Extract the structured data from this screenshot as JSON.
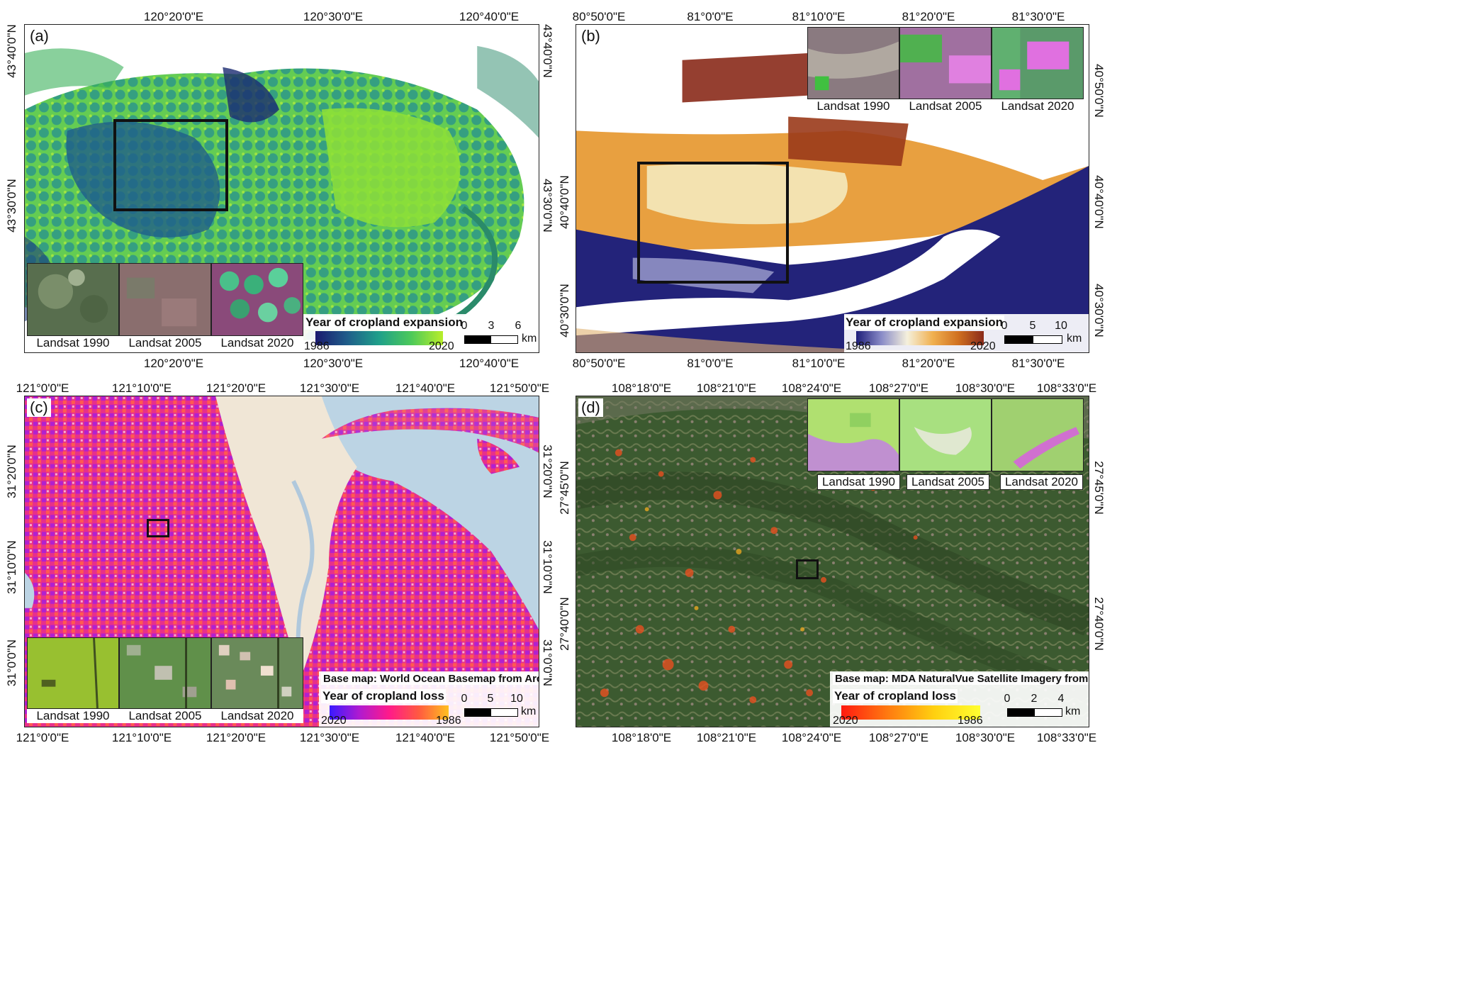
{
  "panels": {
    "a": {
      "label": "(a)",
      "top_ticks": [
        "120°20'0\"E",
        "120°30'0\"E",
        "120°40'0\"E"
      ],
      "bottom_ticks": [
        "120°20'0\"E",
        "120°30'0\"E",
        "120°40'0\"E"
      ],
      "left_ticks": [
        "43°40'0\"N",
        "43°30'0\"N"
      ],
      "right_ticks": [
        "43°40'0\"N",
        "43°30'0\"N"
      ],
      "insets": [
        "Landsat 1990",
        "Landsat 2005",
        "Landsat 2020"
      ],
      "legend_title": "Year of cropland expansion",
      "ramp_start": "1986",
      "ramp_end": "2020",
      "scale_labels": [
        "0",
        "3",
        "6"
      ],
      "scale_unit": "km",
      "ramp_colors": [
        "#1a1a6e",
        "#1f5e8a",
        "#1fa08a",
        "#4cc95a",
        "#b8ee2a"
      ]
    },
    "b": {
      "label": "(b)",
      "top_ticks": [
        "80°50'0\"E",
        "81°0'0\"E",
        "81°10'0\"E",
        "81°20'0\"E",
        "81°30'0\"E"
      ],
      "bottom_ticks": [
        "80°50'0\"E",
        "81°0'0\"E",
        "81°10'0\"E",
        "81°20'0\"E",
        "81°30'0\"E"
      ],
      "left_ticks": [
        "40°40'0\"N",
        "40°30'0\"N"
      ],
      "right_ticks": [
        "40°50'0\"N",
        "40°40'0\"N",
        "40°30'0\"N"
      ],
      "insets": [
        "Landsat 1990",
        "Landsat 2005",
        "Landsat 2020"
      ],
      "legend_title": "Year of cropland expansion",
      "ramp_start": "1986",
      "ramp_end": "2020",
      "scale_labels": [
        "0",
        "5",
        "10"
      ],
      "scale_unit": "km",
      "ramp_colors": [
        "#1e1e7a",
        "#8a8cc8",
        "#f5f0dc",
        "#f0b050",
        "#d07020",
        "#8a2a1a"
      ]
    },
    "c": {
      "label": "(c)",
      "top_ticks": [
        "121°0'0\"E",
        "121°10'0\"E",
        "121°20'0\"E",
        "121°30'0\"E",
        "121°40'0\"E",
        "121°50'0\"E"
      ],
      "bottom_ticks": [
        "121°0'0\"E",
        "121°10'0\"E",
        "121°20'0\"E",
        "121°30'0\"E",
        "121°40'0\"E",
        "121°50'0\"E"
      ],
      "left_ticks": [
        "31°20'0\"N",
        "31°10'0\"N",
        "31°0'0\"N"
      ],
      "right_ticks": [
        "31°20'0\"N",
        "31°10'0\"N",
        "31°0'0\"N"
      ],
      "insets": [
        "Landsat 1990",
        "Landsat 2005",
        "Landsat 2020"
      ],
      "basemap": "Base map: World Ocean Basemap from ArcGIS online",
      "legend_title": "Year of cropland loss",
      "ramp_start": "2020",
      "ramp_end": "1986",
      "scale_labels": [
        "0",
        "5",
        "10"
      ],
      "scale_unit": "km",
      "ramp_colors": [
        "#3a1aff",
        "#b01ad0",
        "#ff1a8a",
        "#ff5a40",
        "#ffc020"
      ]
    },
    "d": {
      "label": "(d)",
      "top_ticks": [
        "108°18'0\"E",
        "108°21'0\"E",
        "108°24'0\"E",
        "108°27'0\"E",
        "108°30'0\"E",
        "108°33'0\"E"
      ],
      "bottom_ticks": [
        "108°18'0\"E",
        "108°21'0\"E",
        "108°24'0\"E",
        "108°27'0\"E",
        "108°30'0\"E",
        "108°33'0\"E"
      ],
      "left_ticks": [
        "27°45'0\"N",
        "27°40'0\"N"
      ],
      "right_ticks": [
        "27°45'0\"N",
        "27°40'0\"N"
      ],
      "insets": [
        "Landsat 1990",
        "Landsat 2005",
        "Landsat 2020"
      ],
      "basemap": "Base map: MDA NaturalVue Satellite Imagery from ArcGIS online",
      "legend_title": "Year of cropland loss",
      "ramp_start": "2020",
      "ramp_end": "1986",
      "scale_labels": [
        "0",
        "2",
        "4"
      ],
      "scale_unit": "km",
      "ramp_colors": [
        "#ff1a10",
        "#ff7a10",
        "#ffd010",
        "#ffff30"
      ]
    }
  }
}
